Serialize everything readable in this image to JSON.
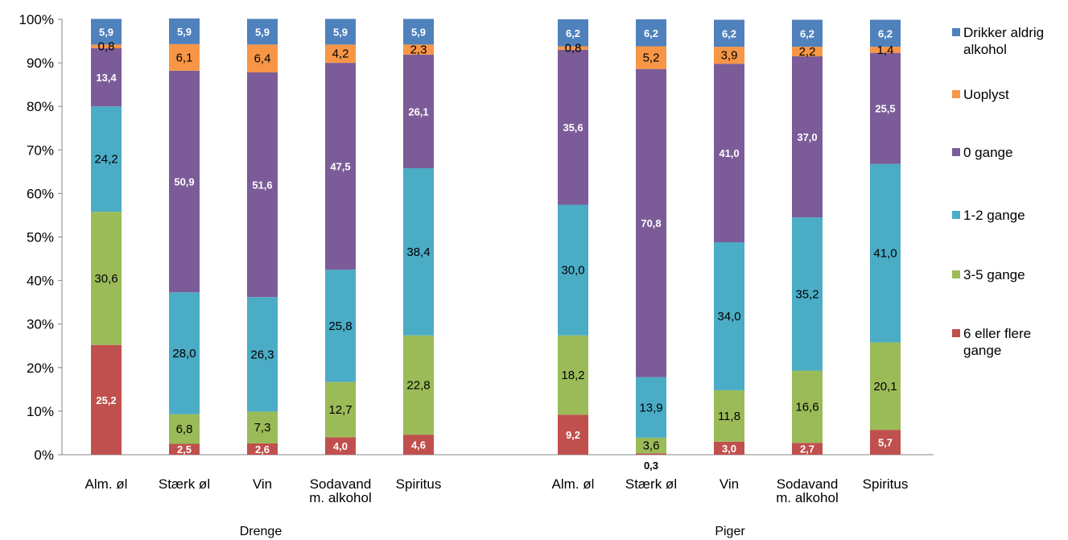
{
  "chart_data": {
    "type": "bar",
    "stacked": "percent",
    "groups": [
      {
        "label": "Drenge",
        "categories": [
          "Alm. øl",
          "Stærk øl",
          "Vin",
          "Sodavand m. alkohol",
          "Spiritus"
        ]
      },
      {
        "label": "Piger",
        "categories": [
          "Alm. øl",
          "Stærk øl",
          "Vin",
          "Sodavand m. alkohol",
          "Spiritus"
        ]
      }
    ],
    "category_lines": [
      [
        "Alm. øl"
      ],
      [
        "Stærk øl"
      ],
      [
        "Vin"
      ],
      [
        "Sodavand",
        "m. alkohol"
      ],
      [
        "Spiritus"
      ]
    ],
    "series": [
      {
        "name": "6 eller flere gange",
        "color": "#C0504D",
        "label_color": "#ffffff",
        "label_bold": true,
        "values": [
          25.2,
          2.5,
          2.6,
          4.0,
          4.6,
          9.2,
          0.3,
          3.0,
          2.7,
          5.7
        ]
      },
      {
        "name": "3-5 gange",
        "color": "#9BBB59",
        "label_color": "#000000",
        "label_bold": false,
        "values": [
          30.6,
          6.8,
          7.3,
          12.7,
          22.8,
          18.2,
          3.6,
          11.8,
          16.6,
          20.1
        ]
      },
      {
        "name": "1-2 gange",
        "color": "#4BACC6",
        "label_color": "#000000",
        "label_bold": false,
        "values": [
          24.2,
          28.0,
          26.3,
          25.8,
          38.4,
          30.0,
          13.9,
          34.0,
          35.2,
          41.0
        ]
      },
      {
        "name": "0 gange",
        "color": "#7B5C98",
        "label_color": "#ffffff",
        "label_bold": true,
        "values": [
          13.4,
          50.9,
          51.6,
          47.5,
          26.1,
          35.6,
          70.8,
          41.0,
          37.0,
          25.5
        ]
      },
      {
        "name": "Uoplyst",
        "color": "#F79646",
        "label_color": "#000000",
        "label_bold": false,
        "values": [
          0.8,
          6.1,
          6.4,
          4.2,
          2.3,
          0.8,
          5.2,
          3.9,
          2.2,
          1.4
        ]
      },
      {
        "name": "Drikker aldrig alkohol",
        "color": "#4F81BD",
        "label_color": "#ffffff",
        "label_bold": true,
        "values": [
          5.9,
          5.9,
          5.9,
          5.9,
          5.9,
          6.2,
          6.2,
          6.2,
          6.2,
          6.2
        ]
      }
    ],
    "legend_lines": [
      [
        "Drikker aldrig",
        "alkohol"
      ],
      [
        "Uoplyst"
      ],
      [
        "0 gange"
      ],
      [
        "1-2 gange"
      ],
      [
        "3-5 gange"
      ],
      [
        "6 eller flere",
        "gange"
      ]
    ],
    "y_ticks": [
      "0%",
      "10%",
      "20%",
      "30%",
      "40%",
      "50%",
      "60%",
      "70%",
      "80%",
      "90%",
      "100%"
    ],
    "ylim": [
      0,
      100
    ],
    "legend_position": "right",
    "grid": false
  }
}
